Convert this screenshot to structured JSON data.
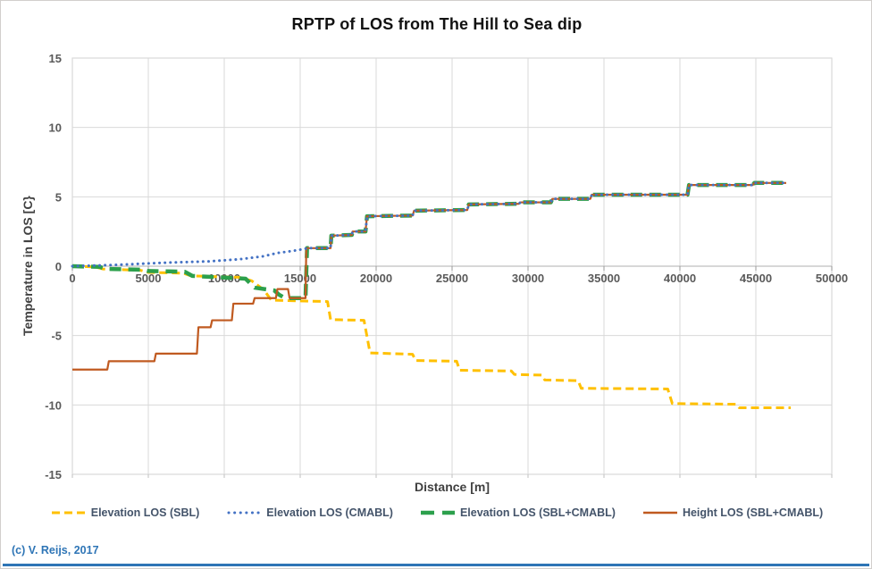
{
  "copyright": "(c) V. Reijs, 2017",
  "chart_data": {
    "type": "line",
    "title": "RPTP of LOS from The Hill to Sea dip",
    "xlabel": "Distance [m]",
    "ylabel": "Temperature in LOS [C}",
    "xlim": [
      0,
      50000
    ],
    "ylim": [
      -15,
      15
    ],
    "xticks": [
      0,
      5000,
      10000,
      15000,
      20000,
      25000,
      30000,
      35000,
      40000,
      45000,
      50000
    ],
    "yticks": [
      15,
      10,
      5,
      0,
      -5,
      -10,
      -15
    ],
    "grid": true,
    "legend_position": "bottom",
    "axis_color": "#bfbfbf",
    "grid_color": "#d9d9d9",
    "tick_label_color": "#595959",
    "series": [
      {
        "name": "Elevation LOS (SBL)",
        "color": "#FFC000",
        "style": "dash",
        "width": 3,
        "points": [
          [
            0,
            0
          ],
          [
            1500,
            -0.05
          ],
          [
            2000,
            -0.2
          ],
          [
            4500,
            -0.3
          ],
          [
            5000,
            -0.45
          ],
          [
            7300,
            -0.5
          ],
          [
            7800,
            -0.7
          ],
          [
            11000,
            -0.8
          ],
          [
            11800,
            -1.05
          ],
          [
            12600,
            -1.7
          ],
          [
            13100,
            -2.45
          ],
          [
            16800,
            -2.55
          ],
          [
            17000,
            -3.85
          ],
          [
            19200,
            -3.9
          ],
          [
            19600,
            -6.25
          ],
          [
            22400,
            -6.35
          ],
          [
            22600,
            -6.8
          ],
          [
            25300,
            -6.85
          ],
          [
            25500,
            -7.5
          ],
          [
            28900,
            -7.55
          ],
          [
            29100,
            -7.8
          ],
          [
            30900,
            -7.85
          ],
          [
            31100,
            -8.2
          ],
          [
            33300,
            -8.25
          ],
          [
            33500,
            -8.8
          ],
          [
            39200,
            -8.85
          ],
          [
            39500,
            -9.9
          ],
          [
            43700,
            -9.95
          ],
          [
            43900,
            -10.2
          ],
          [
            47300,
            -10.2
          ]
        ]
      },
      {
        "name": "Elevation LOS (CMABL)",
        "color": "#4472C4",
        "style": "dot",
        "width": 3,
        "points": [
          [
            0,
            0
          ],
          [
            3000,
            0.1
          ],
          [
            6000,
            0.25
          ],
          [
            9000,
            0.35
          ],
          [
            11000,
            0.5
          ],
          [
            12500,
            0.7
          ],
          [
            13500,
            0.95
          ],
          [
            14500,
            1.1
          ],
          [
            15300,
            1.25
          ],
          [
            15500,
            1.3
          ],
          [
            17000,
            1.3
          ],
          [
            17050,
            2.2
          ],
          [
            18400,
            2.25
          ],
          [
            18450,
            2.5
          ],
          [
            19300,
            2.5
          ],
          [
            19400,
            3.6
          ],
          [
            22400,
            3.65
          ],
          [
            22500,
            4.0
          ],
          [
            26000,
            4.05
          ],
          [
            26100,
            4.45
          ],
          [
            29400,
            4.5
          ],
          [
            29500,
            4.6
          ],
          [
            31500,
            4.6
          ],
          [
            31600,
            4.85
          ],
          [
            34100,
            4.85
          ],
          [
            34200,
            5.15
          ],
          [
            40500,
            5.15
          ],
          [
            40600,
            5.85
          ],
          [
            44800,
            5.85
          ],
          [
            44900,
            6.0
          ],
          [
            47000,
            6.0
          ]
        ]
      },
      {
        "name": "Elevation LOS (SBL+CMABL)",
        "color": "#2CA04C",
        "style": "longdash",
        "width": 4.5,
        "points": [
          [
            0,
            0
          ],
          [
            1800,
            -0.05
          ],
          [
            2200,
            -0.2
          ],
          [
            4600,
            -0.25
          ],
          [
            5000,
            -0.35
          ],
          [
            7400,
            -0.4
          ],
          [
            7900,
            -0.7
          ],
          [
            11400,
            -0.9
          ],
          [
            12000,
            -1.55
          ],
          [
            13300,
            -1.75
          ],
          [
            13600,
            -2.05
          ],
          [
            14000,
            -2.3
          ],
          [
            15350,
            -2.3
          ],
          [
            15450,
            1.3
          ],
          [
            17000,
            1.3
          ],
          [
            17050,
            2.2
          ],
          [
            18400,
            2.25
          ],
          [
            18450,
            2.5
          ],
          [
            19300,
            2.5
          ],
          [
            19400,
            3.6
          ],
          [
            22400,
            3.65
          ],
          [
            22500,
            4.0
          ],
          [
            26000,
            4.05
          ],
          [
            26100,
            4.45
          ],
          [
            29400,
            4.5
          ],
          [
            29500,
            4.6
          ],
          [
            31500,
            4.6
          ],
          [
            31600,
            4.85
          ],
          [
            34100,
            4.85
          ],
          [
            34200,
            5.15
          ],
          [
            40500,
            5.15
          ],
          [
            40600,
            5.85
          ],
          [
            44800,
            5.85
          ],
          [
            44900,
            6.0
          ],
          [
            47000,
            6.0
          ]
        ]
      },
      {
        "name": "Height LOS (SBL+CMABL)",
        "color": "#C05A20",
        "style": "solid",
        "width": 2.2,
        "points": [
          [
            0,
            -7.45
          ],
          [
            2300,
            -7.45
          ],
          [
            2400,
            -6.85
          ],
          [
            5400,
            -6.85
          ],
          [
            5500,
            -6.3
          ],
          [
            8200,
            -6.3
          ],
          [
            8300,
            -4.4
          ],
          [
            9100,
            -4.4
          ],
          [
            9200,
            -3.9
          ],
          [
            10500,
            -3.9
          ],
          [
            10600,
            -2.7
          ],
          [
            11900,
            -2.7
          ],
          [
            12000,
            -2.3
          ],
          [
            13400,
            -2.3
          ],
          [
            13500,
            -1.65
          ],
          [
            14200,
            -1.65
          ],
          [
            14300,
            -2.3
          ],
          [
            15350,
            -2.3
          ],
          [
            15400,
            1.3
          ],
          [
            17000,
            1.3
          ],
          [
            17050,
            2.2
          ],
          [
            18400,
            2.25
          ],
          [
            18450,
            2.5
          ],
          [
            19300,
            2.5
          ],
          [
            19400,
            3.6
          ],
          [
            22400,
            3.65
          ],
          [
            22500,
            4.0
          ],
          [
            26000,
            4.05
          ],
          [
            26100,
            4.45
          ],
          [
            29400,
            4.5
          ],
          [
            29500,
            4.6
          ],
          [
            31500,
            4.6
          ],
          [
            31600,
            4.85
          ],
          [
            34100,
            4.85
          ],
          [
            34200,
            5.15
          ],
          [
            40500,
            5.15
          ],
          [
            40600,
            5.85
          ],
          [
            44800,
            5.85
          ],
          [
            44900,
            6.0
          ],
          [
            47000,
            6.0
          ]
        ]
      }
    ]
  }
}
